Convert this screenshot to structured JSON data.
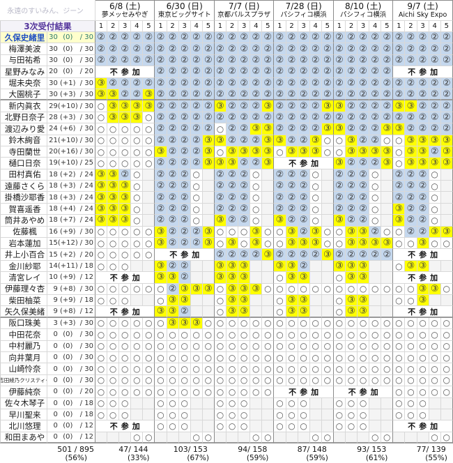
{
  "watermark": "永遠のすいみん、ジーン",
  "chart_data": {
    "type": "table",
    "title": "3次受付結果",
    "absent_label": "不参加",
    "cell_symbols": {
      "2": "②",
      "3": "③",
      "o": "○",
      ".": ""
    },
    "colors": {
      "round2_win_bg": "#c5d8ee",
      "round3_win_bg": "#ffff00",
      "lost_bg": "#ffffff",
      "not_available_bg": "#f4f4f4",
      "favorite_row_bg": "#ffffcc",
      "favorite_name_color": "#1f4ec2",
      "title_color": "#53349b"
    },
    "slot_headers": [
      "1",
      "2",
      "3",
      "4",
      "5"
    ],
    "shows": [
      {
        "date": "6/8 (土)",
        "venue": "夢メッセみやぎ",
        "total": "47/ 144",
        "pct": "(33%)"
      },
      {
        "date": "6/30 (日)",
        "venue": "東京ビッグサイト",
        "total": "103/ 153",
        "pct": "(67%)"
      },
      {
        "date": "7/7 (日)",
        "venue": "京都パルスプラザ",
        "total": "94/ 158",
        "pct": "(59%)"
      },
      {
        "date": "7/28 (日)",
        "venue": "パシフィコ横浜",
        "total": "87/ 148",
        "pct": "(59%)"
      },
      {
        "date": "8/10 (土)",
        "venue": "パシフィコ横浜",
        "total": "93/ 153",
        "pct": "(61%)"
      },
      {
        "date": "9/7 (土)",
        "venue": "Aichi Sky Expo",
        "total": "77/ 139",
        "pct": "(55%)"
      }
    ],
    "grand_total": {
      "frac": "501 / 895",
      "pct": "(56%)"
    },
    "members": [
      {
        "name": "久保史緒里",
        "count": "30",
        "delta": "(0)",
        "max": "/ 30",
        "fav": true,
        "cells": [
          "22222",
          "22222",
          "22222",
          "22222",
          "22222",
          "22222"
        ]
      },
      {
        "name": "梅澤美波",
        "count": "30",
        "delta": "(0)",
        "max": "/ 30",
        "fav": false,
        "cells": [
          "22222",
          "22222",
          "22222",
          "22222",
          "22222",
          "22222"
        ]
      },
      {
        "name": "与田祐希",
        "count": "30",
        "delta": "(0)",
        "max": "/ 30",
        "fav": false,
        "cells": [
          "22222",
          "22222",
          "22222",
          "22222",
          "22222",
          "22222"
        ]
      },
      {
        "name": "星野みなみ",
        "count": "20",
        "delta": "(0)",
        "max": "/ 20",
        "fav": false,
        "cells": [
          "X",
          "22222",
          "22222",
          "22222",
          "22222",
          "X"
        ]
      },
      {
        "name": "堀未央奈",
        "count": "30",
        "delta": "(+1)",
        "max": "/ 30",
        "fav": false,
        "cells": [
          "32222",
          "22222",
          "22222",
          "22222",
          "22222",
          "22222"
        ]
      },
      {
        "name": "大園桃子",
        "count": "30",
        "delta": "(+3)",
        "max": "/ 30",
        "fav": false,
        "cells": [
          "33223",
          "22222",
          "22222",
          "22222",
          "22222",
          "22222"
        ]
      },
      {
        "name": "新内眞衣",
        "count": "29",
        "delta": "(+10)",
        "max": "/ 30",
        "fav": false,
        "cells": [
          "o3333",
          "22222",
          "32223",
          "22223",
          "32222",
          "33222"
        ]
      },
      {
        "name": "北野日奈子",
        "count": "28",
        "delta": "(+3)",
        "max": "/ 30",
        "fav": false,
        "cells": [
          "o333o",
          "22222",
          "22222",
          "22222",
          "22222",
          "22222"
        ]
      },
      {
        "name": "渡辺みり愛",
        "count": "24",
        "delta": "(+6)",
        "max": "/ 30",
        "fav": false,
        "cells": [
          "ooooo",
          "22222",
          "o2233",
          "22223",
          "32223",
          "32222"
        ]
      },
      {
        "name": "鈴木絢音",
        "count": "21",
        "delta": "(+10)",
        "max": "/ 30",
        "fav": false,
        "cells": [
          "ooooo",
          "22223",
          "32223",
          "3223o",
          "o322o",
          "o3333"
        ]
      },
      {
        "name": "寺田蘭世",
        "count": "20",
        "delta": "(+16)",
        "max": "/ 30",
        "fav": false,
        "cells": [
          "ooooo",
          "32223",
          "o3333",
          "o333o",
          "o3333",
          "o3323"
        ]
      },
      {
        "name": "樋口日奈",
        "count": "19",
        "delta": "(+10)",
        "max": "/ 25",
        "fav": false,
        "cells": [
          "ooooo",
          "22223",
          "33223",
          "X",
          "32223",
          "o3333"
        ]
      },
      {
        "name": "田村真佑",
        "count": "18",
        "delta": "(+2)",
        "max": "/ 24",
        "fav": false,
        "cells": [
          "332o.",
          "222o.",
          "222o.",
          "222o.",
          "222o.",
          "222o."
        ]
      },
      {
        "name": "遠藤さくら",
        "count": "18",
        "delta": "(+3)",
        "max": "/ 24",
        "fav": false,
        "cells": [
          "333o.",
          "222o.",
          "222o.",
          "222o.",
          "222o.",
          "222o."
        ]
      },
      {
        "name": "掛橋沙耶香",
        "count": "18",
        "delta": "(+3)",
        "max": "/ 24",
        "fav": false,
        "cells": [
          "333o.",
          "222o.",
          "222o.",
          "222o.",
          "222o.",
          "222o."
        ]
      },
      {
        "name": "賀喜遥香",
        "count": "18",
        "delta": "(+4)",
        "max": "/ 24",
        "fav": false,
        "cells": [
          "333o.",
          "222o.",
          "222o.",
          "222o.",
          "222o.",
          "322o."
        ]
      },
      {
        "name": "筒井あやめ",
        "count": "18",
        "delta": "(+7)",
        "max": "/ 24",
        "fav": false,
        "cells": [
          "333o.",
          "222o.",
          "322o.",
          "322o.",
          "322o.",
          "322o."
        ]
      },
      {
        "name": "佐藤楓",
        "count": "16",
        "delta": "(+9)",
        "max": "/ 30",
        "fav": false,
        "cells": [
          "ooooo",
          "32223",
          "ooo3o",
          "o323o",
          "o332o",
          "o2233"
        ]
      },
      {
        "name": "岩本蓮加",
        "count": "15",
        "delta": "(+12)",
        "max": "/ 30",
        "fav": false,
        "cells": [
          "ooooo",
          "32223",
          "o3o3o",
          "o333o",
          "o3333",
          "oo3oo"
        ]
      },
      {
        "name": "井上小百合",
        "count": "15",
        "delta": "(+2)",
        "max": "/ 20",
        "fav": false,
        "cells": [
          "ooooo",
          "X",
          "22223",
          "22223",
          "22222",
          "X"
        ]
      },
      {
        "name": "金川紗耶",
        "count": "14",
        "delta": "(+11)",
        "max": "/ 18",
        "fav": false,
        "cells": [
          "ooo..",
          "322..",
          "333..",
          "332..",
          "333..",
          "o33.."
        ]
      },
      {
        "name": "清宮レイ",
        "count": "10",
        "delta": "(+9)",
        "max": "/ 12",
        "fav": false,
        "cells": [
          "X",
          "332..",
          "333..",
          "o33..",
          "o33..",
          "X"
        ]
      },
      {
        "name": "伊藤理々杏",
        "count": "9",
        "delta": "(+8)",
        "max": "/ 30",
        "fav": false,
        "cells": [
          "ooooo",
          "o2333",
          "o333o",
          "ooooo",
          "ooooo",
          "oo33o"
        ]
      },
      {
        "name": "柴田柚菜",
        "count": "9",
        "delta": "(+9)",
        "max": "/ 18",
        "fav": false,
        "cells": [
          "ooo..",
          "o33..",
          "o33..",
          "o33..",
          "o33..",
          "oo3.."
        ]
      },
      {
        "name": "矢久保美緒",
        "count": "9",
        "delta": "(+8)",
        "max": "/ 12",
        "fav": false,
        "cells": [
          "X",
          "332..",
          "o33..",
          "o33..",
          "o33..",
          "X"
        ]
      },
      {
        "name": "阪口珠美",
        "count": "3",
        "delta": "(+3)",
        "max": "/ 30",
        "fav": false,
        "cells": [
          "ooooo",
          "o333o",
          "ooooo",
          "ooooo",
          "ooooo",
          "ooooo"
        ]
      },
      {
        "name": "中田花奈",
        "count": "0",
        "delta": "(0)",
        "max": "/ 30",
        "fav": false,
        "cells": [
          "ooooo",
          "ooooo",
          "ooooo",
          "ooooo",
          "ooooo",
          "ooooo"
        ]
      },
      {
        "name": "中村麗乃",
        "count": "0",
        "delta": "(0)",
        "max": "/ 30",
        "fav": false,
        "cells": [
          "ooooo",
          "ooooo",
          "ooooo",
          "ooooo",
          "ooooo",
          "ooooo"
        ]
      },
      {
        "name": "向井葉月",
        "count": "0",
        "delta": "(0)",
        "max": "/ 30",
        "fav": false,
        "cells": [
          "ooooo",
          "ooooo",
          "ooooo",
          "ooooo",
          "ooooo",
          "ooooo"
        ]
      },
      {
        "name": "山崎怜奈",
        "count": "0",
        "delta": "(0)",
        "max": "/ 30",
        "fav": false,
        "cells": [
          "ooooo",
          "ooooo",
          "ooooo",
          "ooooo",
          "ooooo",
          "ooooo"
        ]
      },
      {
        "name": "吉田綾乃クリスティー",
        "count": "0",
        "delta": "(0)",
        "max": "/ 30",
        "fav": false,
        "cells": [
          "ooooo",
          "ooooo",
          "ooooo",
          "ooooo",
          "ooooo",
          "ooooo"
        ]
      },
      {
        "name": "伊藤純奈",
        "count": "0",
        "delta": "(0)",
        "max": "/ 20",
        "fav": false,
        "cells": [
          "ooooo",
          "ooooo",
          "ooooo",
          "X",
          "X",
          "ooooo"
        ]
      },
      {
        "name": "佐々木琴子",
        "count": "0",
        "delta": "(0)",
        "max": "/ 18",
        "fav": false,
        "cells": [
          "ooo..",
          "ooo..",
          "ooo..",
          "ooo..",
          "ooo..",
          "ooo.."
        ]
      },
      {
        "name": "早川聖来",
        "count": "0",
        "delta": "(0)",
        "max": "/ 18",
        "fav": false,
        "cells": [
          "ooo..",
          "ooo..",
          "ooo..",
          "ooo..",
          "ooo..",
          "ooo.."
        ]
      },
      {
        "name": "北川悠理",
        "count": "0",
        "delta": "(0)",
        "max": "/ 12",
        "fav": false,
        "cells": [
          "X",
          "ooo..",
          "ooo..",
          "ooo..",
          "ooo..",
          "X"
        ]
      },
      {
        "name": "和田まあや",
        "count": "0",
        "delta": "(0)",
        "max": "/ 12",
        "fav": false,
        "cells": [
          "...oo",
          "...oo",
          "...oo",
          "...oo",
          "...oo",
          "...oo"
        ]
      }
    ]
  }
}
